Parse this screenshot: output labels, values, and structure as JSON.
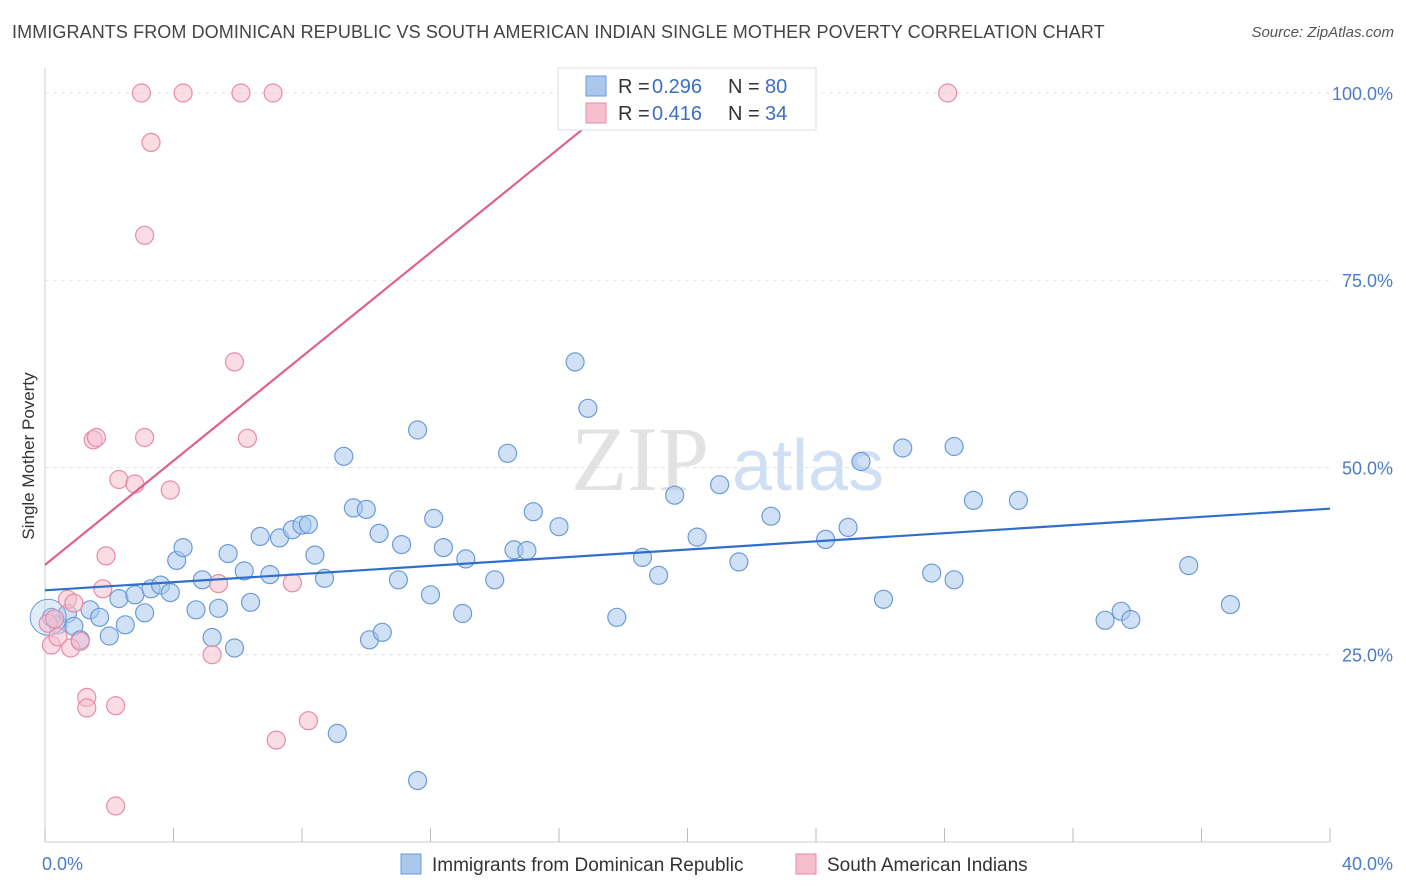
{
  "title": "IMMIGRANTS FROM DOMINICAN REPUBLIC VS SOUTH AMERICAN INDIAN SINGLE MOTHER POVERTY CORRELATION CHART",
  "source": "Source: ZipAtlas.com",
  "watermark": {
    "zip": "ZIP",
    "atlas": "atlas"
  },
  "colors": {
    "blue_fill": "#aac8ee",
    "blue_stroke": "#6b9bd8",
    "blue_line": "#2f6fcb",
    "pink_fill": "#f6bfcf",
    "pink_stroke": "#e98aa6",
    "pink_line": "#e0628a",
    "tick_text": "#4a7cc7"
  },
  "chart_data": {
    "type": "scatter",
    "title": "IMMIGRANTS FROM DOMINICAN REPUBLIC VS SOUTH AMERICAN INDIAN SINGLE MOTHER POVERTY CORRELATION CHART",
    "xlabel": "",
    "ylabel": "Single Mother Poverty",
    "xlim": [
      0,
      40
    ],
    "ylim": [
      0,
      102
    ],
    "x_tick_labels": [
      "0.0%",
      "40.0%"
    ],
    "y_ticks": [
      {
        "value": 25,
        "label": "25.0%"
      },
      {
        "value": 50,
        "label": "50.0%"
      },
      {
        "value": 75,
        "label": "75.0%"
      },
      {
        "value": 100,
        "label": "100.0%"
      }
    ],
    "legend": {
      "position": "top-center",
      "entries": [
        {
          "r_label": "R = ",
          "r_value": "0.296",
          "n_label": "N = ",
          "n_value": "80"
        },
        {
          "r_label": "R = ",
          "r_value": "0.416",
          "n_label": "N = ",
          "n_value": "34"
        }
      ]
    },
    "series": [
      {
        "name": "Immigrants from Dominican Republic",
        "color": "blue",
        "trend": {
          "x": [
            0,
            40
          ],
          "y": [
            33.6,
            44.5
          ]
        },
        "points": [
          [
            0.2,
            30.0
          ],
          [
            0.4,
            29.0
          ],
          [
            0.7,
            30.5
          ],
          [
            0.9,
            28.8
          ],
          [
            1.1,
            27.0
          ],
          [
            1.4,
            31.0
          ],
          [
            1.7,
            30.0
          ],
          [
            2.0,
            27.5
          ],
          [
            2.3,
            32.5
          ],
          [
            2.5,
            29.0
          ],
          [
            2.8,
            33.0
          ],
          [
            3.1,
            30.6
          ],
          [
            3.3,
            33.8
          ],
          [
            3.6,
            34.3
          ],
          [
            3.9,
            33.3
          ],
          [
            4.1,
            37.6
          ],
          [
            4.3,
            39.3
          ],
          [
            4.7,
            31.0
          ],
          [
            4.9,
            35.0
          ],
          [
            5.2,
            27.3
          ],
          [
            5.4,
            31.2
          ],
          [
            5.7,
            38.5
          ],
          [
            5.9,
            25.9
          ],
          [
            6.2,
            36.2
          ],
          [
            6.4,
            32.0
          ],
          [
            6.7,
            40.8
          ],
          [
            7.0,
            35.7
          ],
          [
            7.3,
            40.6
          ],
          [
            7.7,
            41.7
          ],
          [
            8.0,
            42.3
          ],
          [
            8.2,
            42.4
          ],
          [
            8.4,
            38.3
          ],
          [
            8.7,
            35.2
          ],
          [
            9.3,
            51.5
          ],
          [
            9.6,
            44.6
          ],
          [
            10.0,
            44.4
          ],
          [
            10.1,
            27.0
          ],
          [
            10.5,
            28.0
          ],
          [
            10.4,
            41.2
          ],
          [
            11.0,
            35.0
          ],
          [
            11.1,
            39.7
          ],
          [
            11.6,
            55.0
          ],
          [
            12.0,
            33.0
          ],
          [
            12.1,
            43.2
          ],
          [
            12.4,
            39.3
          ],
          [
            13.0,
            30.5
          ],
          [
            13.1,
            37.8
          ],
          [
            14.0,
            35.0
          ],
          [
            14.4,
            51.9
          ],
          [
            14.6,
            39.0
          ],
          [
            15.0,
            38.9
          ],
          [
            15.2,
            44.1
          ],
          [
            16.0,
            42.1
          ],
          [
            16.5,
            64.1
          ],
          [
            16.9,
            57.9
          ],
          [
            17.8,
            30.0
          ],
          [
            18.6,
            38.0
          ],
          [
            19.1,
            35.6
          ],
          [
            19.6,
            46.3
          ],
          [
            20.3,
            40.7
          ],
          [
            21.0,
            47.7
          ],
          [
            21.6,
            37.4
          ],
          [
            22.6,
            43.5
          ],
          [
            24.3,
            40.4
          ],
          [
            25.0,
            42.0
          ],
          [
            25.4,
            50.8
          ],
          [
            26.1,
            32.4
          ],
          [
            26.7,
            52.6
          ],
          [
            27.6,
            35.9
          ],
          [
            28.3,
            52.8
          ],
          [
            28.3,
            35.0
          ],
          [
            28.9,
            45.6
          ],
          [
            30.3,
            45.6
          ],
          [
            33.0,
            29.6
          ],
          [
            33.5,
            30.8
          ],
          [
            33.8,
            29.7
          ],
          [
            35.6,
            36.9
          ],
          [
            36.9,
            31.7
          ],
          [
            11.6,
            8.2
          ],
          [
            9.1,
            14.5
          ]
        ]
      },
      {
        "name": "South American Indians",
        "color": "pink",
        "trend": {
          "x": [
            0,
            40
          ],
          "y": [
            37.0,
            176.0
          ]
        },
        "points": [
          [
            0.1,
            29.2
          ],
          [
            0.2,
            26.3
          ],
          [
            0.4,
            27.4
          ],
          [
            0.7,
            32.4
          ],
          [
            0.9,
            31.9
          ],
          [
            0.8,
            25.9
          ],
          [
            1.1,
            26.8
          ],
          [
            1.3,
            19.3
          ],
          [
            1.3,
            17.9
          ],
          [
            1.5,
            53.7
          ],
          [
            1.6,
            54.0
          ],
          [
            1.8,
            33.8
          ],
          [
            1.9,
            38.2
          ],
          [
            2.2,
            18.2
          ],
          [
            2.2,
            4.8
          ],
          [
            2.3,
            48.4
          ],
          [
            2.8,
            47.8
          ],
          [
            3.1,
            54.0
          ],
          [
            3.1,
            81.0
          ],
          [
            3.3,
            93.4
          ],
          [
            3.9,
            47.0
          ],
          [
            4.3,
            100.0
          ],
          [
            5.2,
            25.0
          ],
          [
            5.4,
            34.5
          ],
          [
            5.9,
            64.1
          ],
          [
            6.3,
            53.9
          ],
          [
            7.2,
            13.6
          ],
          [
            7.7,
            34.6
          ],
          [
            8.2,
            16.2
          ],
          [
            3.0,
            100.0
          ],
          [
            6.1,
            100.0
          ],
          [
            7.1,
            100.0
          ],
          [
            28.1,
            100.0
          ],
          [
            0.3,
            29.8
          ]
        ]
      }
    ]
  },
  "bottom_legend": [
    {
      "label": "Immigrants from Dominican Republic"
    },
    {
      "label": "South American Indians"
    }
  ]
}
